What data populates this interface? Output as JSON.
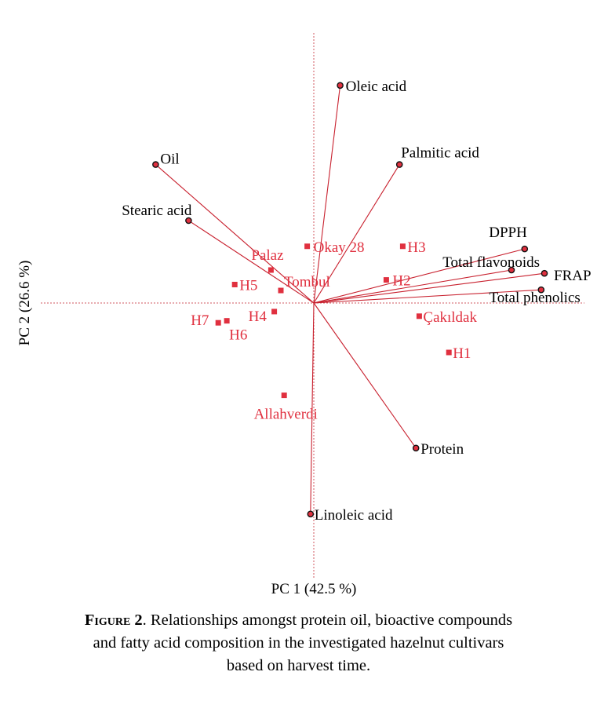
{
  "chart_data": {
    "type": "scatter",
    "subtype": "PCA biplot",
    "xlabel": "PC 1  (42.5 %)",
    "ylabel": "PC 2  (26.6 %)",
    "xlim": [
      -4.2,
      4.2
    ],
    "ylim": [
      -4.2,
      4.2
    ],
    "reference_lines": {
      "x": 0,
      "y": 0,
      "style": "dotted"
    },
    "grid": false,
    "legend": "none",
    "colors": {
      "loadings": "#c8202e",
      "scores": "#e0303f",
      "variable_labels": "#000000",
      "point_fill": "#e0303f",
      "point_edge": "#111111"
    },
    "variables": [
      {
        "name": "Oleic acid",
        "x": 0.4,
        "y": 3.3
      },
      {
        "name": "Palmitic acid",
        "x": 1.3,
        "y": 2.1
      },
      {
        "name": "Oil",
        "x": -2.4,
        "y": 2.1
      },
      {
        "name": "Stearic acid",
        "x": -1.9,
        "y": 1.25
      },
      {
        "name": "DPPH",
        "x": 3.2,
        "y": 0.82
      },
      {
        "name": "FRAP",
        "x": 3.5,
        "y": 0.45
      },
      {
        "name": "Total flavonoids",
        "x": 3.0,
        "y": 0.5
      },
      {
        "name": "Total phenolics",
        "x": 3.45,
        "y": 0.2
      },
      {
        "name": "Protein",
        "x": 1.55,
        "y": -2.2
      },
      {
        "name": "Linoleic acid",
        "x": -0.05,
        "y": -3.2
      }
    ],
    "observations": [
      {
        "name": "Okay 28",
        "x": -0.1,
        "y": 0.86
      },
      {
        "name": "H3",
        "x": 1.35,
        "y": 0.86
      },
      {
        "name": "Palaz",
        "x": -0.65,
        "y": 0.5
      },
      {
        "name": "H2",
        "x": 1.1,
        "y": 0.35
      },
      {
        "name": "H5",
        "x": -1.2,
        "y": 0.28
      },
      {
        "name": "Tombul",
        "x": -0.5,
        "y": 0.19
      },
      {
        "name": "H4",
        "x": -0.6,
        "y": -0.13
      },
      {
        "name": "H7",
        "x": -1.45,
        "y": -0.3
      },
      {
        "name": "H6",
        "x": -1.32,
        "y": -0.27
      },
      {
        "name": "Çakıldak",
        "x": 1.6,
        "y": -0.2
      },
      {
        "name": "H1",
        "x": 2.05,
        "y": -0.75
      },
      {
        "name": "Allahverdi",
        "x": -0.45,
        "y": -1.4
      }
    ]
  },
  "caption": {
    "figure_label": "Figure 2",
    "lines": [
      ". Relationships amongst protein oil, bioactive compounds",
      "and fatty acid composition in the investigated hazelnut cultivars",
      "based on harvest time."
    ]
  }
}
